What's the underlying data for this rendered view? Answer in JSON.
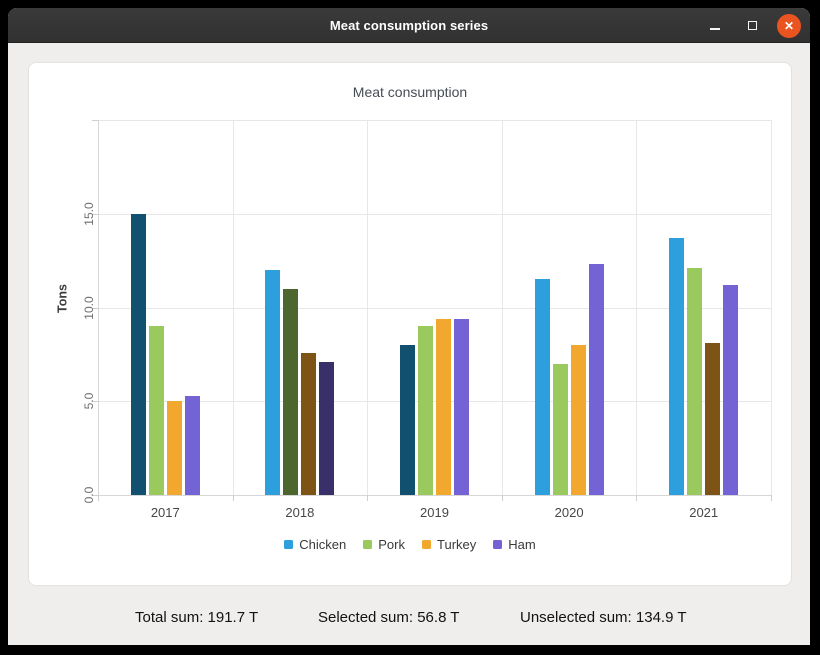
{
  "window": {
    "title": "Meat consumption series",
    "controls": {
      "close_glyph": "✕"
    }
  },
  "chart_data": {
    "type": "bar",
    "title": "Meat consumption",
    "ylabel": "Tons",
    "ylim": [
      0,
      20
    ],
    "grid": true,
    "legend_position": "bottom",
    "ytick_values": [
      0,
      5,
      10,
      15
    ],
    "ytick_labels": [
      "0.0",
      "5.0",
      "10.0",
      "15.0"
    ],
    "categories": [
      "2017",
      "2018",
      "2019",
      "2020",
      "2021"
    ],
    "series": [
      {
        "name": "Chicken",
        "color": "#2d9fdd",
        "selected_color": "#12506f",
        "values": [
          15.0,
          12.0,
          8.0,
          11.5,
          13.7
        ],
        "selected": [
          true,
          false,
          true,
          false,
          false
        ]
      },
      {
        "name": "Pork",
        "color": "#9aca5e",
        "selected_color": "#4c662e",
        "values": [
          9.0,
          11.0,
          9.0,
          7.0,
          12.1
        ],
        "selected": [
          false,
          true,
          false,
          false,
          false
        ]
      },
      {
        "name": "Turkey",
        "color": "#f2a72e",
        "selected_color": "#7d5415",
        "values": [
          5.0,
          7.6,
          9.4,
          8.0,
          8.1
        ],
        "selected": [
          false,
          true,
          false,
          false,
          true
        ]
      },
      {
        "name": "Ham",
        "color": "#7463d4",
        "selected_color": "#39306a",
        "values": [
          5.3,
          7.1,
          9.4,
          12.3,
          11.2
        ],
        "selected": [
          false,
          true,
          false,
          false,
          false
        ]
      }
    ]
  },
  "status": {
    "total": "Total sum: 191.7 T",
    "selected": "Selected sum: 56.8 T",
    "unselected": "Unselected sum: 134.9 T"
  }
}
